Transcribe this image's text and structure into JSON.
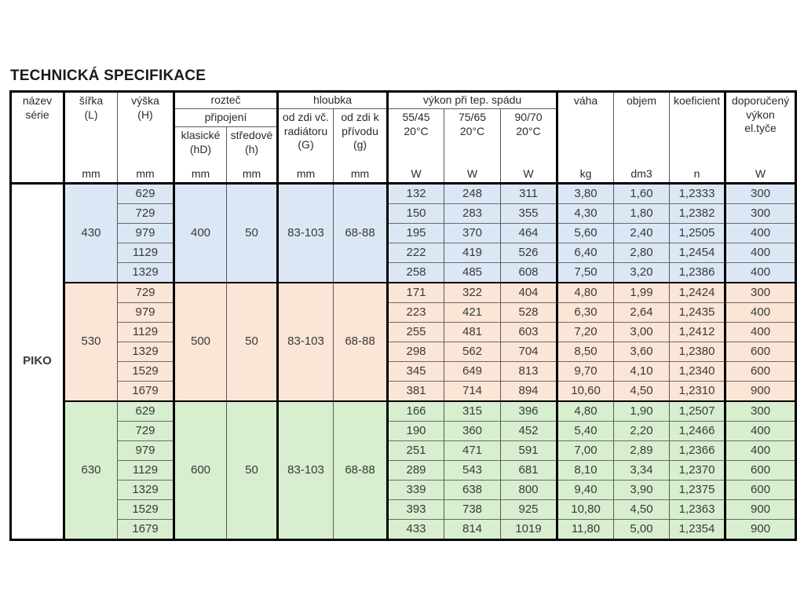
{
  "title": "TECHNICKÁ SPECIFIKACE",
  "table": {
    "series": "PIKO",
    "header": {
      "nazev_serie": "název\nsérie",
      "sirka": "šířka\n(L)",
      "vyska": "výška\n(H)",
      "roztec": "rozteč",
      "pripojeni": "připojení",
      "klasicke": "klasické\n(hD)",
      "stredove": "středové\n(h)",
      "hloubka": "hloubka",
      "od_zdi_radiator": "od zdi vč.\nradiátoru\n(G)",
      "od_zdi_privod": "od zdi k\npřívodu\n(g)",
      "vykon": "výkon při tep.  spádu",
      "spad1": "55/45\n20°C",
      "spad2": "75/65\n20°C",
      "spad3": "90/70\n20°C",
      "vaha": "váha",
      "objem": "objem",
      "koeficient": "koeficient",
      "doporuceny": "doporučený\nvýkon\nel.tyče",
      "units": {
        "sirka": "mm",
        "vyska": "mm",
        "klasicke": "mm",
        "stredove": "mm",
        "G": "mm",
        "g": "mm",
        "spad1": "W",
        "spad2": "W",
        "spad3": "W",
        "vaha": "kg",
        "objem": "dm3",
        "koeficient": "n",
        "doporuceny": "W"
      }
    },
    "groups": [
      {
        "width": "430",
        "klasicke": "400",
        "stredove": "50",
        "G": "83-103",
        "g": "68-88",
        "color": "#dbe7f4",
        "rows": [
          [
            "629",
            "132",
            "248",
            "311",
            "3,80",
            "1,60",
            "1,2333",
            "300"
          ],
          [
            "729",
            "150",
            "283",
            "355",
            "4,30",
            "1,80",
            "1,2382",
            "300"
          ],
          [
            "979",
            "195",
            "370",
            "464",
            "5,60",
            "2,40",
            "1,2505",
            "400"
          ],
          [
            "1129",
            "222",
            "419",
            "526",
            "6,40",
            "2,80",
            "1,2454",
            "400"
          ],
          [
            "1329",
            "258",
            "485",
            "608",
            "7,50",
            "3,20",
            "1,2386",
            "400"
          ]
        ]
      },
      {
        "width": "530",
        "klasicke": "500",
        "stredove": "50",
        "G": "83-103",
        "g": "68-88",
        "color": "#fbe5d6",
        "rows": [
          [
            "729",
            "171",
            "322",
            "404",
            "4,80",
            "1,99",
            "1,2424",
            "300"
          ],
          [
            "979",
            "223",
            "421",
            "528",
            "6,30",
            "2,64",
            "1,2435",
            "400"
          ],
          [
            "1129",
            "255",
            "481",
            "603",
            "7,20",
            "3,00",
            "1,2412",
            "400"
          ],
          [
            "1329",
            "298",
            "562",
            "704",
            "8,50",
            "3,60",
            "1,2380",
            "600"
          ],
          [
            "1529",
            "345",
            "649",
            "813",
            "9,70",
            "4,10",
            "1,2340",
            "600"
          ],
          [
            "1679",
            "381",
            "714",
            "894",
            "10,60",
            "4,50",
            "1,2310",
            "900"
          ]
        ]
      },
      {
        "width": "630",
        "klasicke": "600",
        "stredove": "50",
        "G": "83-103",
        "g": "68-88",
        "color": "#d7efcf",
        "rows": [
          [
            "629",
            "166",
            "315",
            "396",
            "4,80",
            "1,90",
            "1,2507",
            "300"
          ],
          [
            "729",
            "190",
            "360",
            "452",
            "5,40",
            "2,20",
            "1,2466",
            "400"
          ],
          [
            "979",
            "251",
            "471",
            "591",
            "7,00",
            "2,89",
            "1,2366",
            "400"
          ],
          [
            "1129",
            "289",
            "543",
            "681",
            "8,10",
            "3,34",
            "1,2370",
            "600"
          ],
          [
            "1329",
            "339",
            "638",
            "800",
            "9,40",
            "3,90",
            "1,2375",
            "600"
          ],
          [
            "1529",
            "393",
            "738",
            "925",
            "10,80",
            "4,50",
            "1,2363",
            "900"
          ],
          [
            "1679",
            "433",
            "814",
            "1019",
            "11,80",
            "5,00",
            "1,2354",
            "900"
          ]
        ]
      }
    ]
  }
}
